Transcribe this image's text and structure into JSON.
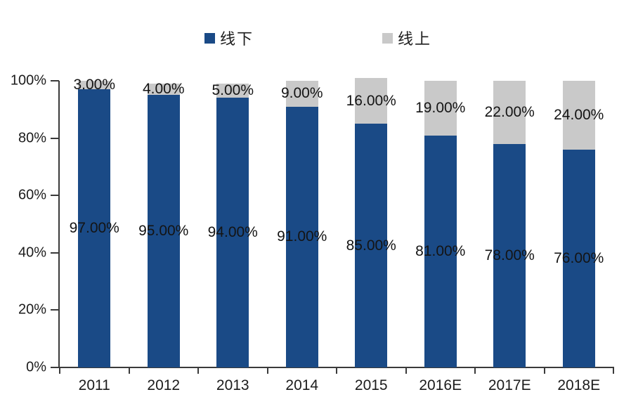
{
  "page": {
    "background": "#ffffff"
  },
  "chart_data": {
    "type": "bar",
    "stacked": true,
    "title": "",
    "xlabel": "",
    "ylabel": "",
    "categories": [
      "2011",
      "2012",
      "2013",
      "2014",
      "2015",
      "2016E",
      "2017E",
      "2018E"
    ],
    "series": [
      {
        "name": "线下",
        "color": "#1A4A86",
        "values": [
          97,
          95,
          94,
          91,
          85,
          81,
          78,
          76
        ],
        "data_labels": [
          "97.00%",
          "95.00%",
          "94.00%",
          "91.00%",
          "85.00%",
          "81.00%",
          "78.00%",
          "76.00%"
        ]
      },
      {
        "name": "线上",
        "color": "#C9C9C9",
        "values": [
          3,
          4,
          5,
          9,
          16,
          19,
          22,
          24
        ],
        "data_labels": [
          "3.00%",
          "4.00%",
          "5.00%",
          "9.00%",
          "16.00%",
          "19.00%",
          "22.00%",
          "24.00%"
        ]
      }
    ],
    "ylim": [
      0,
      100
    ],
    "y_tick_labels": [
      "0%",
      "20%",
      "40%",
      "60%",
      "80%",
      "100%"
    ],
    "grid": false,
    "legend_position": "top",
    "axis_color": "#3a3a3a"
  }
}
